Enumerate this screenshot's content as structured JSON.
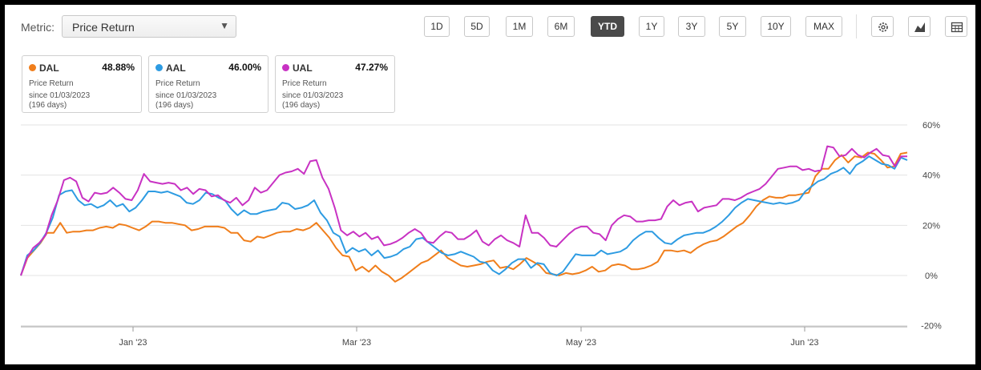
{
  "metric": {
    "label": "Metric:",
    "selected": "Price Return"
  },
  "ranges": [
    {
      "label": "1D",
      "active": false
    },
    {
      "label": "5D",
      "active": false
    },
    {
      "label": "1M",
      "active": false
    },
    {
      "label": "6M",
      "active": false
    },
    {
      "label": "YTD",
      "active": true
    },
    {
      "label": "1Y",
      "active": false
    },
    {
      "label": "3Y",
      "active": false
    },
    {
      "label": "5Y",
      "active": false
    },
    {
      "label": "10Y",
      "active": false
    },
    {
      "label": "MAX",
      "active": false
    }
  ],
  "tools": [
    "gear-icon",
    "chart-type-icon",
    "table-icon"
  ],
  "cards": [
    {
      "ticker": "DAL",
      "value": "48.88%",
      "metric": "Price Return",
      "since": "since 01/03/2023",
      "days": "(196 days)",
      "color": "#f07e1b"
    },
    {
      "ticker": "AAL",
      "value": "46.00%",
      "metric": "Price Return",
      "since": "since 01/03/2023",
      "days": "(196 days)",
      "color": "#2d9be2"
    },
    {
      "ticker": "UAL",
      "value": "47.27%",
      "metric": "Price Return",
      "since": "since 01/03/2023",
      "days": "(196 days)",
      "color": "#c832c3"
    }
  ],
  "chart_data": {
    "type": "line",
    "x_ticks": [
      "Jan '23",
      "Mar '23",
      "May '23",
      "Jun '23"
    ],
    "y_ticks": [
      "60%",
      "40%",
      "20%",
      "0%",
      "-20%"
    ],
    "ylim": [
      -20,
      60
    ],
    "grid": true,
    "series": [
      {
        "name": "DAL",
        "color": "#f07e1b",
        "values": [
          0,
          7,
          10,
          13,
          17,
          17,
          21,
          17,
          17.5,
          17.5,
          18,
          18,
          19,
          19.5,
          19,
          20.5,
          20,
          19,
          18,
          19.5,
          21.5,
          21.5,
          21,
          21,
          20.5,
          20,
          18,
          18.5,
          19.5,
          19.5,
          19.5,
          19,
          17,
          17,
          14,
          13.5,
          15.5,
          15,
          16,
          17,
          17.5,
          17.5,
          18.5,
          18,
          19,
          21,
          18,
          15,
          11,
          8,
          7.5,
          2,
          3.5,
          1.5,
          4,
          1.5,
          0,
          -2.5,
          -1,
          1,
          3,
          5,
          6,
          8,
          10,
          7,
          5.5,
          4,
          3.5,
          4,
          4.5,
          5.5,
          6,
          3,
          3.5,
          2.5,
          4.5,
          7,
          5.5,
          4,
          1,
          0.5,
          0,
          1,
          0.5,
          1,
          2,
          3.5,
          1.5,
          2,
          4,
          4.5,
          4,
          2.5,
          2.5,
          3,
          4,
          5.5,
          10,
          10,
          9.5,
          10,
          9,
          11,
          12.5,
          13.5,
          14,
          15.5,
          17.5,
          19.5,
          21,
          24,
          27.5,
          30,
          31.5,
          31,
          31,
          32,
          32,
          32.5,
          33,
          39.5,
          42.5,
          42.5,
          46,
          48,
          45,
          47.5,
          47,
          49,
          48.5,
          46,
          43,
          43.5,
          48.5,
          49
        ]
      },
      {
        "name": "AAL",
        "color": "#2d9be2",
        "values": [
          0,
          8,
          10,
          13,
          17,
          23,
          32,
          33.5,
          34,
          30,
          28,
          28.5,
          27,
          28,
          30,
          27.5,
          28.5,
          25.5,
          27,
          30,
          33.5,
          33.5,
          33,
          33.5,
          32.5,
          31.5,
          29,
          28.5,
          30,
          33,
          32.5,
          31,
          30,
          26.5,
          24,
          26,
          24.5,
          24.5,
          25.5,
          26,
          26.5,
          29,
          28.5,
          26.5,
          27,
          28,
          30,
          25,
          22,
          17,
          15.5,
          9,
          11,
          9.5,
          10.5,
          8,
          10,
          7,
          7.5,
          8.5,
          10.5,
          11.5,
          14.5,
          15,
          13,
          11,
          9,
          8,
          8.5,
          9.5,
          8.5,
          7.5,
          5.5,
          5,
          2,
          0.5,
          2.5,
          5,
          6.5,
          6.5,
          3,
          5,
          4.5,
          1,
          0,
          1.5,
          5,
          8.5,
          8,
          8,
          8,
          10,
          8.5,
          9,
          9.5,
          11,
          14,
          16,
          17.5,
          17.5,
          15,
          13,
          12.5,
          14.5,
          16,
          16.5,
          17,
          17,
          18,
          19.5,
          21.5,
          24,
          27,
          29,
          30.5,
          30,
          29.5,
          29,
          28.5,
          29,
          28.5,
          29,
          30,
          33.5,
          35.5,
          37.5,
          38.5,
          40.5,
          41.5,
          43,
          40.5,
          44,
          45.5,
          47.5,
          46,
          44.5,
          44,
          42.5,
          47,
          46
        ]
      },
      {
        "name": "UAL",
        "color": "#c832c3",
        "values": [
          0,
          7,
          11,
          13,
          16,
          24,
          30,
          38,
          39,
          37.5,
          31,
          29.5,
          33,
          32.5,
          33,
          35,
          33,
          30.5,
          30,
          34,
          40.5,
          37.5,
          37,
          36.5,
          37,
          36.5,
          34,
          35,
          32.5,
          34.5,
          34,
          31.5,
          32,
          30,
          29,
          31,
          28,
          30,
          35,
          33,
          34,
          37,
          40,
          41,
          41.5,
          42.5,
          40.5,
          45.5,
          46,
          39,
          34.5,
          27,
          18,
          16,
          17.5,
          15.5,
          17,
          14.5,
          15.5,
          12,
          12.5,
          13.5,
          15,
          17,
          18.5,
          17,
          13.5,
          13,
          15.5,
          17.5,
          17,
          14.5,
          14.5,
          16,
          18,
          13.5,
          12,
          14.5,
          16,
          14,
          13,
          11.5,
          24,
          17,
          17,
          15,
          12,
          11.5,
          14,
          16.5,
          18.5,
          19.5,
          19.5,
          17,
          16.5,
          14,
          20,
          22.5,
          24,
          23.5,
          21.5,
          21.5,
          22,
          22,
          22.5,
          27.5,
          30,
          28,
          29,
          29.5,
          25.5,
          27,
          27.5,
          28,
          30.5,
          30.5,
          30,
          31,
          32.5,
          33.5,
          34.5,
          36.5,
          39.5,
          42.5,
          43,
          43.5,
          43.5,
          42,
          42.5,
          41.5,
          42,
          51.5,
          51,
          47.5,
          48,
          50.5,
          48,
          47,
          49,
          50.5,
          48,
          47.5,
          43.5,
          47.5,
          47.5
        ]
      }
    ]
  }
}
